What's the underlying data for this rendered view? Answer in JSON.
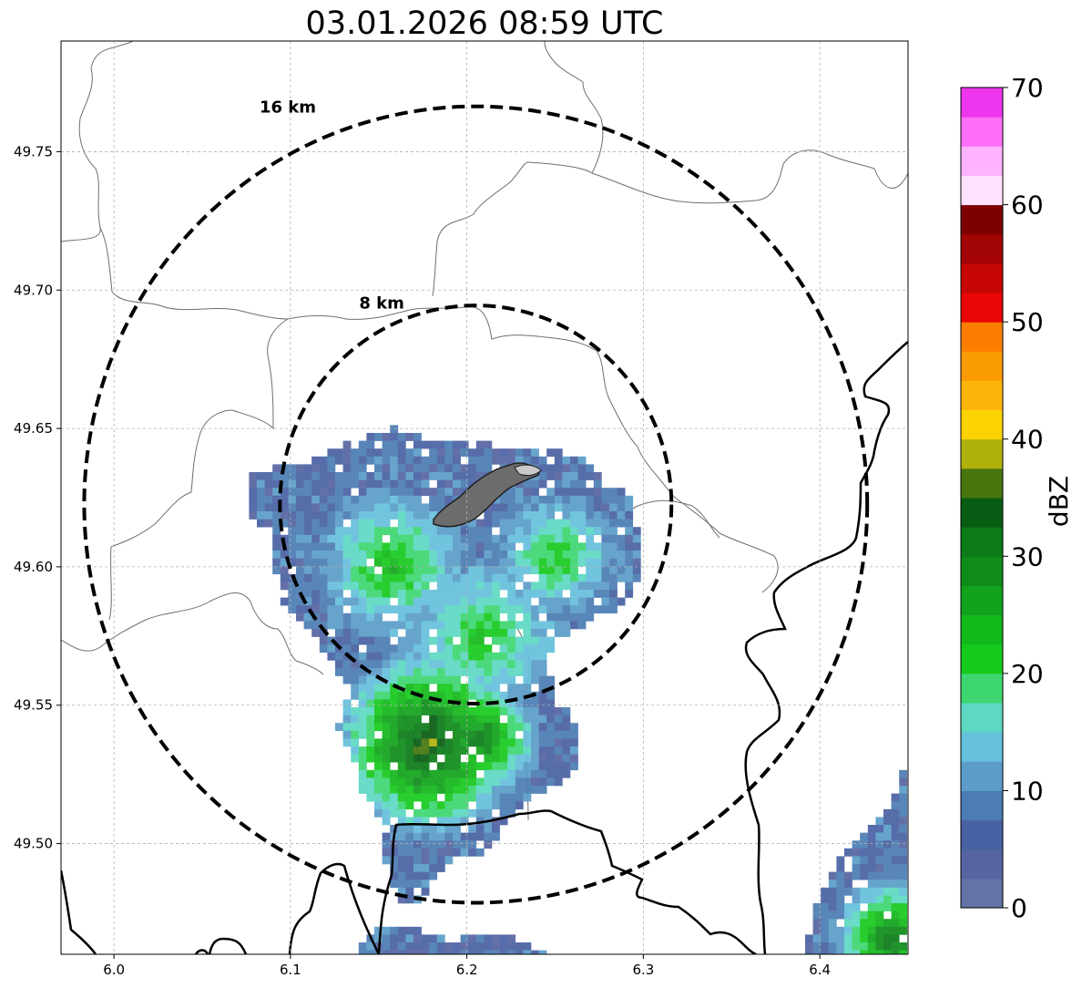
{
  "title": "03.01.2026 08:59 UTC",
  "map": {
    "lon_range": [
      5.97,
      6.45
    ],
    "lat_range": [
      49.46,
      49.79
    ],
    "x_ticks": [
      6.0,
      6.1,
      6.2,
      6.3,
      6.4
    ],
    "x_tick_labels": [
      "6.0",
      "6.1",
      "6.2",
      "6.3",
      "6.4"
    ],
    "y_ticks": [
      49.5,
      49.55,
      49.6,
      49.65,
      49.7,
      49.75
    ],
    "y_tick_labels": [
      "49.50",
      "49.55",
      "49.60",
      "49.65",
      "49.70",
      "49.75"
    ],
    "grid": true,
    "radar_center": {
      "lon": 6.205,
      "lat": 49.6225
    },
    "range_rings": [
      {
        "label": "8 km",
        "radius_km": 8
      },
      {
        "label": "16 km",
        "radius_km": 16
      }
    ]
  },
  "colorbar": {
    "label": "dBZ",
    "min": 0,
    "max": 70,
    "tick_values": [
      0,
      10,
      20,
      30,
      40,
      50,
      60,
      70
    ],
    "tick_labels": [
      "0",
      "10",
      "20",
      "30",
      "40",
      "50",
      "60",
      "70"
    ],
    "colors": [
      "#6373a6",
      "#5664a1",
      "#4861a3",
      "#4b7cb3",
      "#5b9dc8",
      "#65c0dc",
      "#5dd8c3",
      "#3dd670",
      "#16c91d",
      "#13b81b",
      "#11a31b",
      "#0e8b19",
      "#0c7a18",
      "#085c13",
      "#47760e",
      "#afb10b",
      "#fcd202",
      "#fcb509",
      "#fb9b03",
      "#fb7e00",
      "#e80505",
      "#c60505",
      "#a20404",
      "#7c0000",
      "#ffe1ff",
      "#ffb3ff",
      "#ff6ef8",
      "#ed36ed"
    ]
  }
}
